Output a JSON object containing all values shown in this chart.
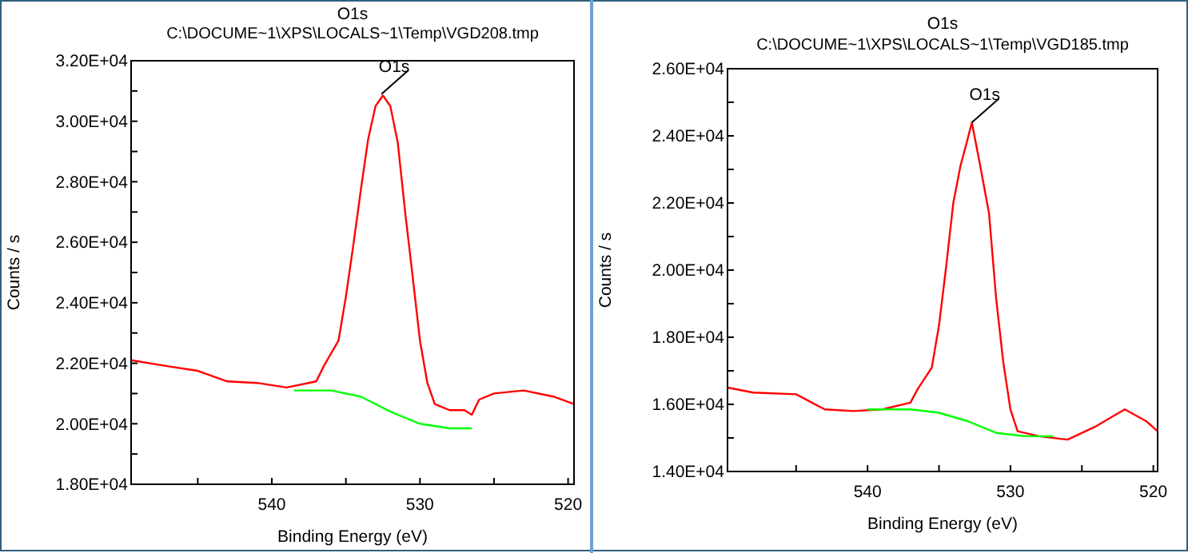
{
  "chart_data": [
    {
      "type": "line",
      "title": "O1s",
      "subtitle": "C:\\DOCUME~1\\XPS\\LOCALS~1\\Temp\\VGD208.tmp",
      "xlabel": "Binding Energy (eV)",
      "ylabel": "Counts / s",
      "xlim": [
        549.5,
        519.6
      ],
      "ylim": [
        18000,
        32000
      ],
      "xticks": [
        {
          "value": 545,
          "label": null
        },
        540,
        {
          "value": 535,
          "label": null
        },
        530,
        {
          "value": 525,
          "label": null
        },
        520
      ],
      "yticks": [
        {
          "value": 18000,
          "label": "1.80E+04"
        },
        {
          "value": 19000,
          "label": null
        },
        {
          "value": 20000,
          "label": "2.00E+04"
        },
        {
          "value": 21000,
          "label": null
        },
        {
          "value": 22000,
          "label": "2.20E+04"
        },
        {
          "value": 23000,
          "label": null
        },
        {
          "value": 24000,
          "label": "2.40E+04"
        },
        {
          "value": 25000,
          "label": null
        },
        {
          "value": 26000,
          "label": "2.60E+04"
        },
        {
          "value": 27000,
          "label": null
        },
        {
          "value": 28000,
          "label": "2.80E+04"
        },
        {
          "value": 29000,
          "label": null
        },
        {
          "value": 30000,
          "label": "3.00E+04"
        },
        {
          "value": 31000,
          "label": null
        },
        {
          "value": 32000,
          "label": "3.20E+04"
        }
      ],
      "grid": false,
      "annotations": [
        {
          "text": "O1s",
          "x": 532.6,
          "y": 30900
        }
      ],
      "series": [
        {
          "color": "#ff0000",
          "x": [
            549.5,
            547,
            545,
            543,
            541,
            539,
            537,
            536.5,
            535.5,
            535,
            534.5,
            534,
            533.5,
            533,
            532.5,
            532,
            531.5,
            531,
            530.5,
            530,
            529.5,
            529,
            528,
            527,
            526.5,
            526,
            525,
            523,
            521,
            519.6
          ],
          "values": [
            22100,
            21900,
            21750,
            21400,
            21350,
            21200,
            21400,
            21900,
            22750,
            24200,
            25900,
            27700,
            29400,
            30500,
            30850,
            30500,
            29300,
            27000,
            24900,
            22750,
            21350,
            20650,
            20450,
            20450,
            20300,
            20800,
            21000,
            21100,
            20900,
            20650
          ]
        },
        {
          "color": "#00ff00",
          "x": [
            538.5,
            536,
            534,
            532,
            530,
            528,
            526.5
          ],
          "values": [
            21100,
            21100,
            20900,
            20400,
            20000,
            19850,
            19850
          ]
        }
      ]
    },
    {
      "type": "line",
      "title": "O1s",
      "subtitle": "C:\\DOCUME~1\\XPS\\LOCALS~1\\Temp\\VGD185.tmp",
      "xlabel": "Binding Energy (eV)",
      "ylabel": "Counts / s",
      "xlim": [
        549.8,
        519.7
      ],
      "ylim": [
        14000,
        26000
      ],
      "xticks": [
        {
          "value": 545,
          "label": null
        },
        540,
        {
          "value": 535,
          "label": null
        },
        530,
        {
          "value": 525,
          "label": null
        },
        520
      ],
      "yticks": [
        {
          "value": 14000,
          "label": "1.40E+04"
        },
        {
          "value": 15000,
          "label": null
        },
        {
          "value": 16000,
          "label": "1.60E+04"
        },
        {
          "value": 17000,
          "label": null
        },
        {
          "value": 18000,
          "label": "1.80E+04"
        },
        {
          "value": 19000,
          "label": null
        },
        {
          "value": 20000,
          "label": "2.00E+04"
        },
        {
          "value": 21000,
          "label": null
        },
        {
          "value": 22000,
          "label": "2.20E+04"
        },
        {
          "value": 23000,
          "label": null
        },
        {
          "value": 24000,
          "label": "2.40E+04"
        },
        {
          "value": 25000,
          "label": null
        },
        {
          "value": 26000,
          "label": "2.60E+04"
        }
      ],
      "grid": false,
      "annotations": [
        {
          "text": "O1s",
          "x": 532.7,
          "y": 24400
        }
      ],
      "series": [
        {
          "color": "#ff0000",
          "x": [
            549.8,
            548,
            545,
            543,
            541,
            539,
            537,
            536.5,
            535.5,
            535,
            534.5,
            534,
            533.5,
            533,
            532.7,
            532.2,
            531.5,
            531,
            530.5,
            530,
            529.5,
            528,
            526,
            524,
            522,
            520.5,
            519.7
          ],
          "values": [
            16500,
            16350,
            16300,
            15850,
            15800,
            15850,
            16050,
            16450,
            17100,
            18350,
            20100,
            22000,
            23100,
            23900,
            24400,
            23300,
            21700,
            19150,
            17250,
            15850,
            15200,
            15050,
            14950,
            15350,
            15850,
            15500,
            15200
          ]
        },
        {
          "color": "#00ff00",
          "x": [
            540,
            537,
            535,
            533,
            531,
            529,
            527
          ],
          "values": [
            15850,
            15850,
            15750,
            15500,
            15150,
            15050,
            15050
          ]
        }
      ]
    }
  ]
}
